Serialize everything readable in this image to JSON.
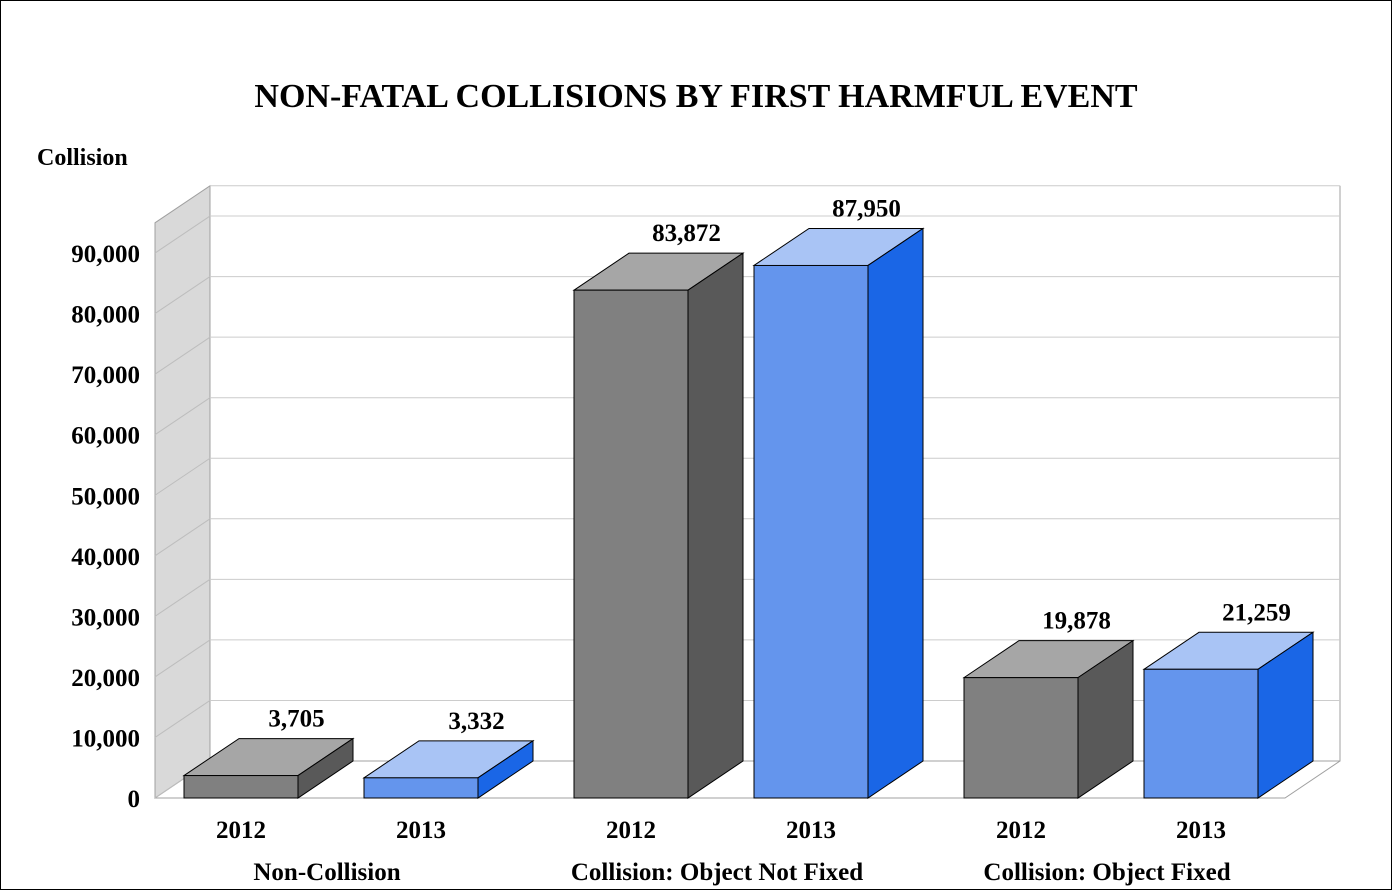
{
  "chart_data": {
    "type": "bar",
    "title": "NON-FATAL COLLISIONS BY FIRST HARMFUL EVENT",
    "ylabel": "Collision",
    "xlabel": "",
    "ylim": [
      0,
      95000
    ],
    "y_ticks": [
      0,
      10000,
      20000,
      30000,
      40000,
      50000,
      60000,
      70000,
      80000,
      90000
    ],
    "y_tick_labels": [
      "0",
      "10,000",
      "20,000",
      "30,000",
      "40,000",
      "50,000",
      "60,000",
      "70,000",
      "80,000",
      "90,000"
    ],
    "grid": true,
    "legend": "none",
    "groups": [
      {
        "label": "Non-Collision",
        "bars": [
          {
            "year": "2012",
            "value": 3705,
            "value_label": "3,705"
          },
          {
            "year": "2013",
            "value": 3332,
            "value_label": "3,332"
          }
        ]
      },
      {
        "label": "Collision: Object Not Fixed",
        "bars": [
          {
            "year": "2012",
            "value": 83872,
            "value_label": "83,872"
          },
          {
            "year": "2013",
            "value": 87950,
            "value_label": "87,950"
          }
        ]
      },
      {
        "label": "Collision: Object Fixed",
        "bars": [
          {
            "year": "2012",
            "value": 19878,
            "value_label": "19,878"
          },
          {
            "year": "2013",
            "value": 21259,
            "value_label": "21,259"
          }
        ]
      }
    ],
    "colors": {
      "2012": {
        "front": "#808080",
        "top": "#a6a6a6",
        "side": "#595959"
      },
      "2013": {
        "front": "#6495ed",
        "top": "#a9c4f5",
        "side": "#1a66e6"
      },
      "side_wall": "#d9d9d9",
      "grid": "#cccccc"
    }
  }
}
